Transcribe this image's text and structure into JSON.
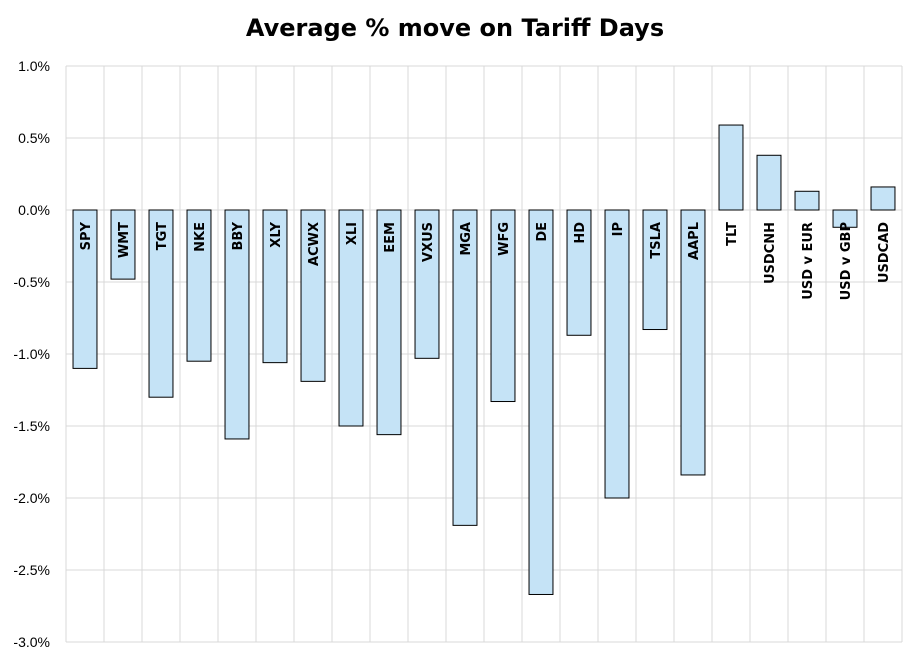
{
  "chart_data": {
    "type": "bar",
    "title": "Average % move on Tariff Days",
    "xlabel": "",
    "ylabel": "",
    "categories": [
      "SPY",
      "WMT",
      "TGT",
      "NKE",
      "BBY",
      "XLY",
      "ACWX",
      "XLI",
      "EEM",
      "VXUS",
      "MGA",
      "WFG",
      "DE",
      "HD",
      "IP",
      "TSLA",
      "AAPL",
      "TLT",
      "USDCNH",
      "USD v EUR",
      "USD v GBP",
      "USDCAD"
    ],
    "values": [
      -1.1,
      -0.48,
      -1.3,
      -1.05,
      -1.59,
      -1.06,
      -1.19,
      -1.5,
      -1.56,
      -1.03,
      -2.19,
      -1.33,
      -2.67,
      -0.87,
      -2.0,
      -0.83,
      -1.84,
      0.59,
      0.38,
      0.13,
      -0.12,
      0.16
    ],
    "ylim": [
      -3.0,
      1.0
    ],
    "yticks": [
      "1.0%",
      "0.5%",
      "0.0%",
      "-0.5%",
      "-1.0%",
      "-1.5%",
      "-2.0%",
      "-2.5%",
      "-3.0%"
    ],
    "ytick_values": [
      1.0,
      0.5,
      0.0,
      -0.5,
      -1.0,
      -1.5,
      -2.0,
      -2.5,
      -3.0
    ],
    "grid": true,
    "legend": "none",
    "bar_color": "#c5e3f6",
    "bar_edge_color": "#000000",
    "grid_color": "#d9d9d9"
  }
}
